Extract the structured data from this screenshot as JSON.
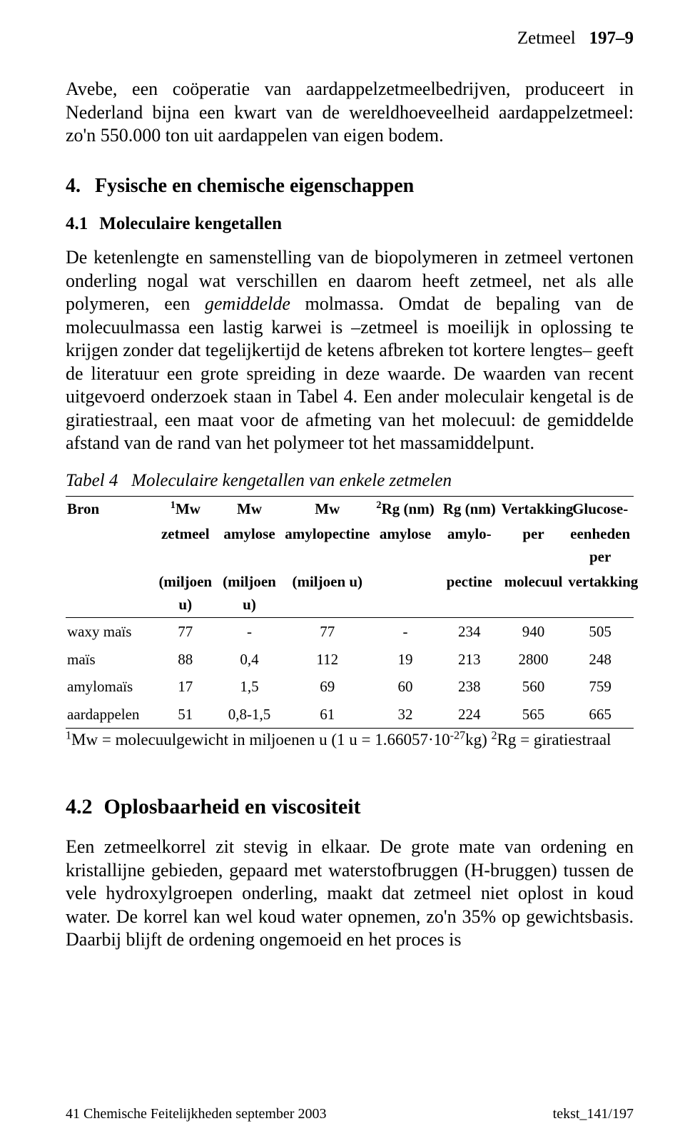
{
  "header": {
    "topic": "Zetmeel",
    "pagecode": "197–9"
  },
  "para_intro": "Avebe, een coöperatie van aardappelzetmeelbedrijven, produceert in Nederland bijna een kwart van de wereldhoeveelheid aardappelzetmeel: zo'n 550.000 ton uit aardappelen van eigen bodem.",
  "sec4": {
    "num": "4.",
    "title": "Fysische en chemische eigenschappen"
  },
  "sec41": {
    "num": "4.1",
    "title": "Moleculaire kengetallen"
  },
  "body41_pre": "De ketenlengte en samenstelling van de biopolymeren in zetmeel vertonen onderling nogal wat verschillen en daarom heeft zetmeel, net als alle polymeren, een ",
  "body41_em": "gemiddelde",
  "body41_post": " molmassa. Omdat de bepaling van de molecuulmassa een lastig karwei is –zetmeel is moeilijk in oplossing te krijgen zonder dat tegelijkertijd de ketens afbreken tot kortere lengtes– geeft de literatuur een grote spreiding in deze waarde. De waarden van recent uitgevoerd onderzoek staan in Tabel 4. Een ander moleculair kengetal is de giratiestraal, een maat voor de afmeting van het molecuul: de gemiddelde afstand van de rand van het polymeer tot het massamiddelpunt.",
  "table": {
    "caption_pre": "Tabel 4",
    "caption_rest": "Moleculaire kengetallen van enkele zetmelen",
    "colwidths": [
      "16%",
      "11%",
      "12%",
      "16%",
      "12%",
      "11%",
      "12%",
      "12%"
    ],
    "headers": {
      "c0": "Bron",
      "c1_l1": "Mw",
      "c1_l2": "zetmeel",
      "c1_l3": "(miljoen u)",
      "c2_l1": "Mw",
      "c2_l2": "amylose",
      "c2_l3": "(miljoen u)",
      "c3_l1": "Mw",
      "c3_l2": "amylopectine",
      "c3_l3": "(miljoen u)",
      "c4_l1": "Rg (nm)",
      "c4_l2": "amylose",
      "c5_l1": "Rg (nm)",
      "c5_l2": "amylo-",
      "c5_l3": "pectine",
      "c6_l1": "Vertakking",
      "c6_l2": "per",
      "c6_l3": "molecuul",
      "c7_l1": "Glucose-",
      "c7_l2": "eenheden per",
      "c7_l3": "vertakking",
      "sup1": "1",
      "sup2": "2"
    },
    "rows": [
      {
        "bron": "waxy maïs",
        "c1": "77",
        "c2": "-",
        "c3": "77",
        "c4": "-",
        "c5": "234",
        "c6": "940",
        "c7": "505"
      },
      {
        "bron": "maïs",
        "c1": "88",
        "c2": "0,4",
        "c3": "112",
        "c4": "19",
        "c5": "213",
        "c6": "2800",
        "c7": "248"
      },
      {
        "bron": "amylomaïs",
        "c1": "17",
        "c2": "1,5",
        "c3": "69",
        "c4": "60",
        "c5": "238",
        "c6": "560",
        "c7": "759"
      },
      {
        "bron": "aardappelen",
        "c1": "51",
        "c2": "0,8-1,5",
        "c3": "61",
        "c4": "32",
        "c5": "224",
        "c6": "565",
        "c7": "665"
      }
    ],
    "footnote_s1": "1",
    "footnote_t1": "Mw = molecuulgewicht in miljoenen u (1 u = 1.66057·10",
    "footnote_exp": "-27",
    "footnote_t2": "kg)  ",
    "footnote_s2": "2",
    "footnote_t3": "Rg = giratiestraal"
  },
  "sec42": {
    "num": "4.2",
    "title": "Oplosbaarheid en viscositeit"
  },
  "body42": "Een zetmeelkorrel zit stevig in elkaar. De grote mate van ordening en kristallijne gebieden, gepaard met waterstofbruggen (H-bruggen) tussen de vele hydroxylgroepen onderling, maakt dat zetmeel niet oplost in koud water. De korrel kan wel koud water opnemen, zo'n 35% op gewichtsbasis. Daarbij blijft de ordening ongemoeid en het proces is",
  "footer": {
    "left": "41 Chemische Feitelijkheden   september 2003",
    "right": "tekst_141/197"
  }
}
